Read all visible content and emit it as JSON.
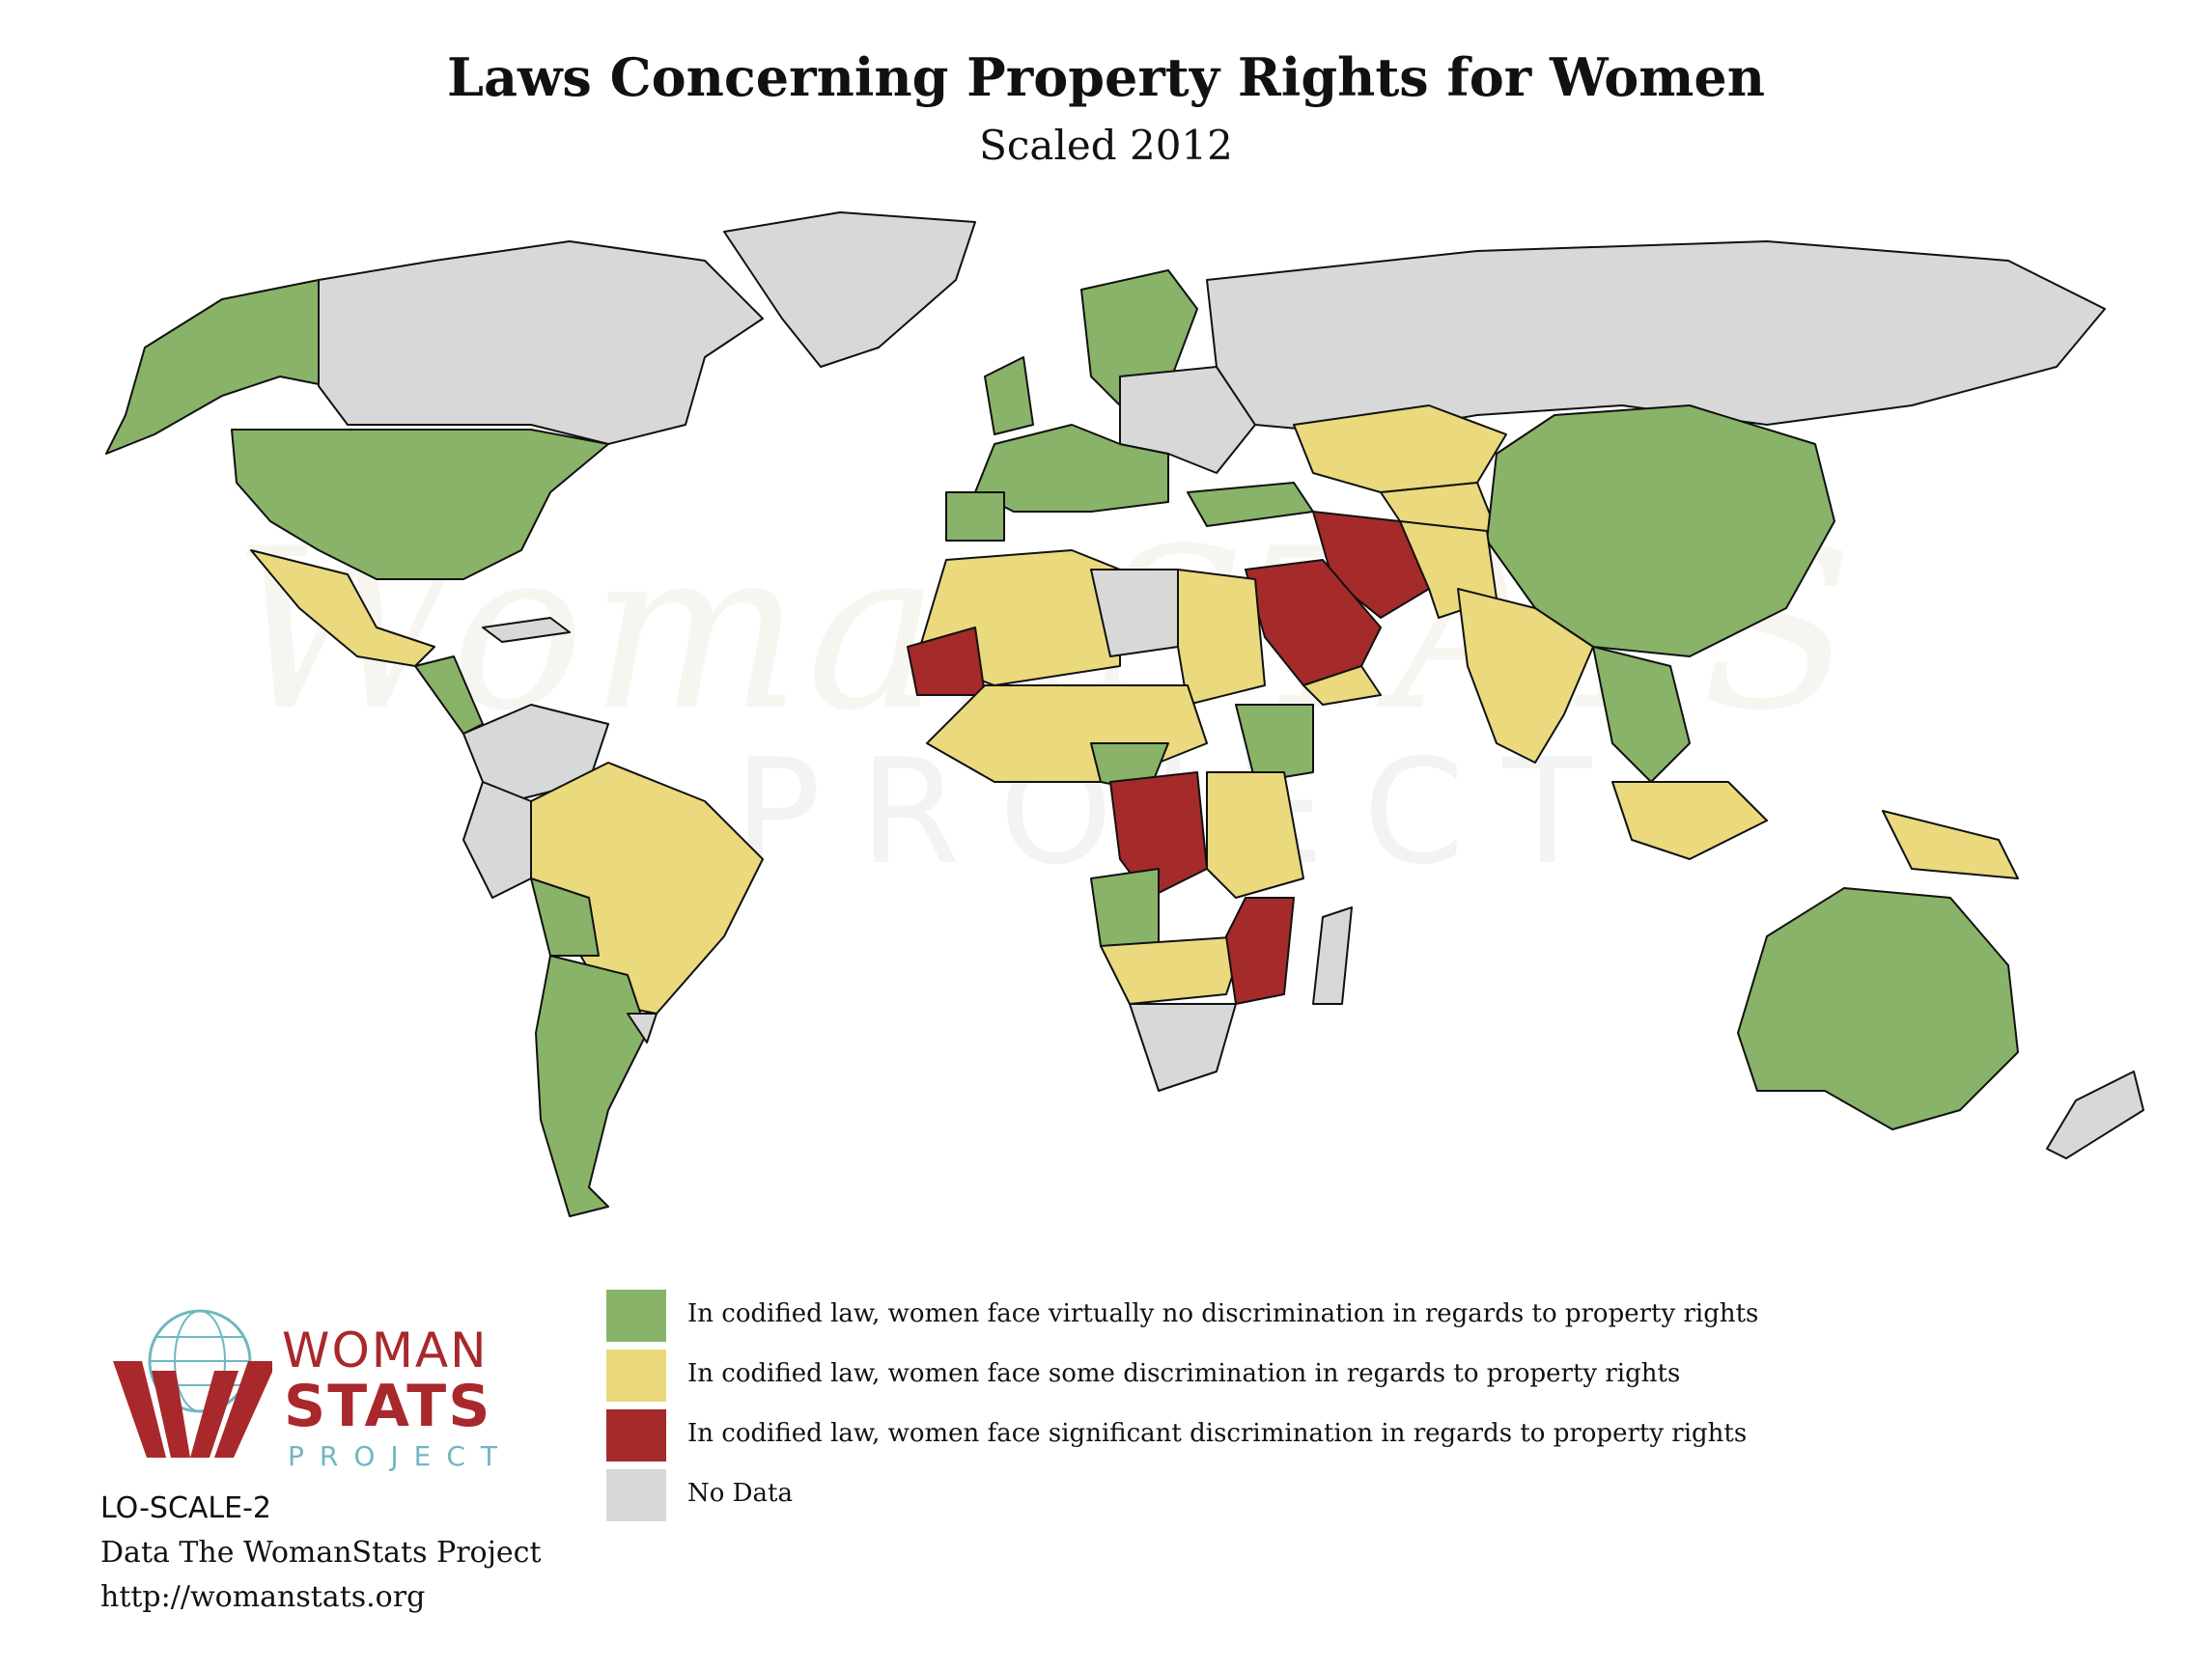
{
  "title": "Laws Concerning Property Rights for Women",
  "subtitle": "Scaled 2012",
  "colors": {
    "no_discrimination": "#88b368",
    "some_discrimination": "#ead97d",
    "significant_discrimination": "#a52a2a",
    "no_data": "#d8d8d8",
    "ocean": "#ffffff",
    "border": "#111111"
  },
  "watermark": {
    "top_text": "WomanSTATS",
    "bottom_text": "PROJECT"
  },
  "legend": [
    {
      "key": "no_discrimination",
      "label": "In codified law, women face virtually no discrimination in regards to property rights"
    },
    {
      "key": "some_discrimination",
      "label": "In codified law, women face some discrimination in regards to property rights"
    },
    {
      "key": "significant_discrimination",
      "label": "In codified law, women face significant discrimination in regards to property rights"
    },
    {
      "key": "no_data",
      "label": "No Data"
    }
  ],
  "logo": {
    "line1": "WOMAN",
    "line2": "STATS",
    "line3": "PROJECT"
  },
  "footer": {
    "code": "LO-SCALE-2",
    "source": "Data The WomanStats Project",
    "url": "http://womanstats.org"
  }
}
